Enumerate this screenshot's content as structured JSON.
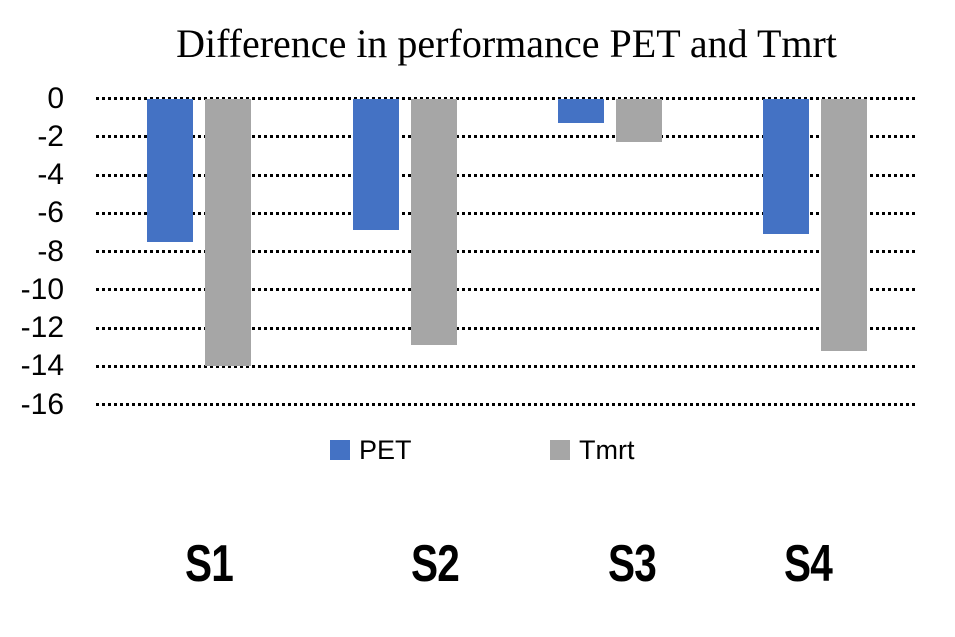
{
  "chart_data": {
    "type": "bar",
    "title": "Difference in performance PET and Tmrt",
    "orientation": "vertical",
    "categories": [
      "S1",
      "S2",
      "S3",
      "S4"
    ],
    "series": [
      {
        "name": "PET",
        "color": "#4472C4",
        "values": [
          -7.5,
          -6.9,
          -1.3,
          -7.1
        ]
      },
      {
        "name": "Tmrt",
        "color": "#A6A6A6",
        "values": [
          -14.0,
          -12.9,
          -2.3,
          -13.2
        ]
      }
    ],
    "y_ticks": [
      "0",
      "-2",
      "-4",
      "-6",
      "-8",
      "-10",
      "-12",
      "-14",
      "-16"
    ],
    "ylim": [
      -16,
      0
    ],
    "grid": "horizontal-dotted",
    "legend_position": "bottom",
    "axis_lines": "none"
  }
}
